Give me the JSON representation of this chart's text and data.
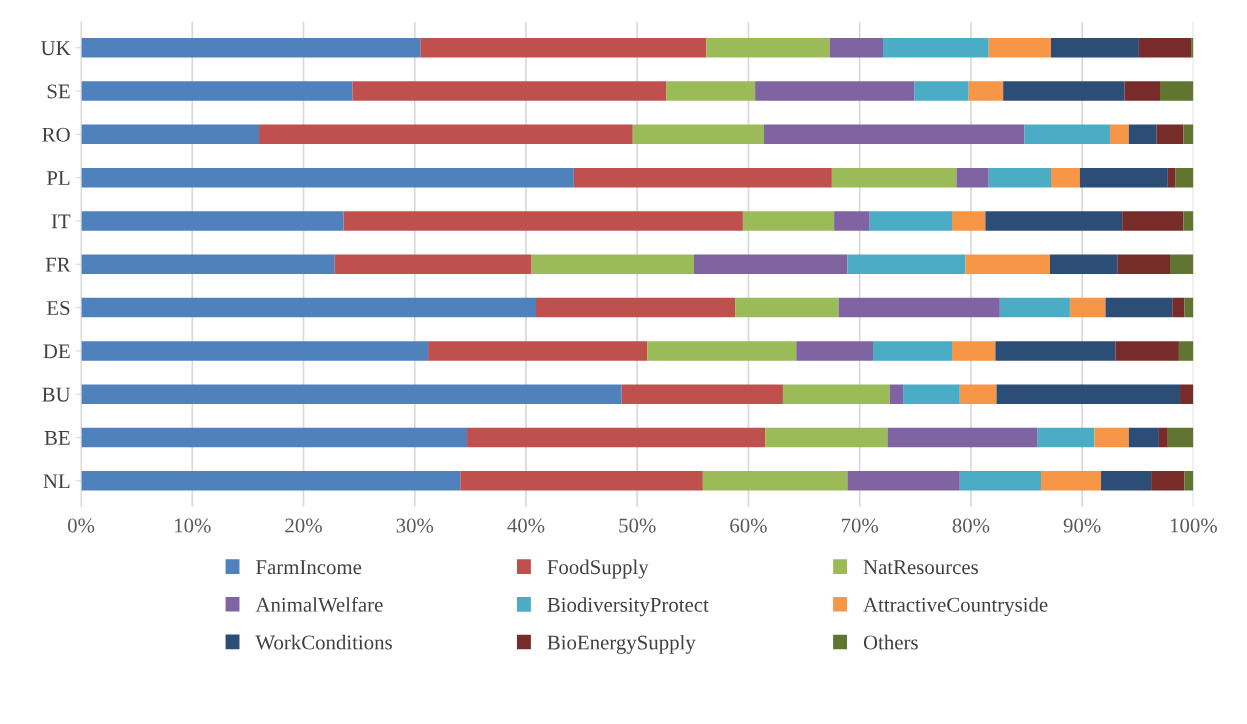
{
  "chart_data": {
    "type": "bar",
    "orientation": "horizontal",
    "stacked": true,
    "categories": [
      "UK",
      "SE",
      "RO",
      "PL",
      "IT",
      "FR",
      "ES",
      "DE",
      "BU",
      "BE",
      "NL"
    ],
    "series": [
      {
        "name": "FarmIncome",
        "color": "#4f81bd",
        "values": [
          30.5,
          24.4,
          16.0,
          44.3,
          23.6,
          22.8,
          40.9,
          31.2,
          48.6,
          34.7,
          34.1
        ]
      },
      {
        "name": "FoodSupply",
        "color": "#c0504d",
        "values": [
          25.7,
          28.2,
          33.6,
          23.2,
          35.9,
          17.7,
          17.9,
          19.7,
          14.5,
          26.8,
          21.8
        ]
      },
      {
        "name": "NatResources",
        "color": "#9bbb59",
        "values": [
          11.1,
          8.0,
          11.8,
          11.2,
          8.2,
          14.6,
          9.3,
          13.4,
          9.6,
          11.0,
          13.0
        ]
      },
      {
        "name": "AnimalWelfare",
        "color": "#8064a2",
        "values": [
          4.8,
          14.3,
          23.4,
          2.9,
          3.2,
          13.8,
          14.5,
          6.9,
          1.2,
          13.5,
          10.1
        ]
      },
      {
        "name": "BiodiversityProtect",
        "color": "#4bacc6",
        "values": [
          9.5,
          4.9,
          7.7,
          5.6,
          7.4,
          10.6,
          6.3,
          7.1,
          5.1,
          5.1,
          7.3
        ]
      },
      {
        "name": "AttractiveCountryside",
        "color": "#f79646",
        "values": [
          5.6,
          3.1,
          1.7,
          2.6,
          3.0,
          7.6,
          3.2,
          3.9,
          3.3,
          3.1,
          5.4
        ]
      },
      {
        "name": "WorkConditions",
        "color": "#2c4d75",
        "values": [
          7.9,
          10.9,
          2.5,
          7.9,
          12.3,
          6.1,
          6.0,
          10.8,
          16.5,
          2.7,
          4.5
        ]
      },
      {
        "name": "BioEnergySupply",
        "color": "#772c2a",
        "values": [
          4.7,
          3.2,
          2.4,
          0.7,
          5.5,
          4.7,
          1.1,
          5.7,
          1.2,
          0.8,
          3.0
        ]
      },
      {
        "name": "Others",
        "color": "#5f7530",
        "values": [
          0.2,
          3.0,
          0.9,
          1.6,
          0.9,
          2.1,
          0.8,
          1.3,
          0.0,
          2.3,
          0.8
        ]
      }
    ],
    "xlim": [
      0,
      100
    ],
    "xticks": [
      {
        "value": 0,
        "label": "0%"
      },
      {
        "value": 10,
        "label": "10%"
      },
      {
        "value": 20,
        "label": "20%"
      },
      {
        "value": 30,
        "label": "30%"
      },
      {
        "value": 40,
        "label": "40%"
      },
      {
        "value": 50,
        "label": "50%"
      },
      {
        "value": 60,
        "label": "60%"
      },
      {
        "value": 70,
        "label": "70%"
      },
      {
        "value": 80,
        "label": "80%"
      },
      {
        "value": 90,
        "label": "90%"
      },
      {
        "value": 100,
        "label": "100%"
      }
    ],
    "grid": "x",
    "legend": "bottom"
  }
}
